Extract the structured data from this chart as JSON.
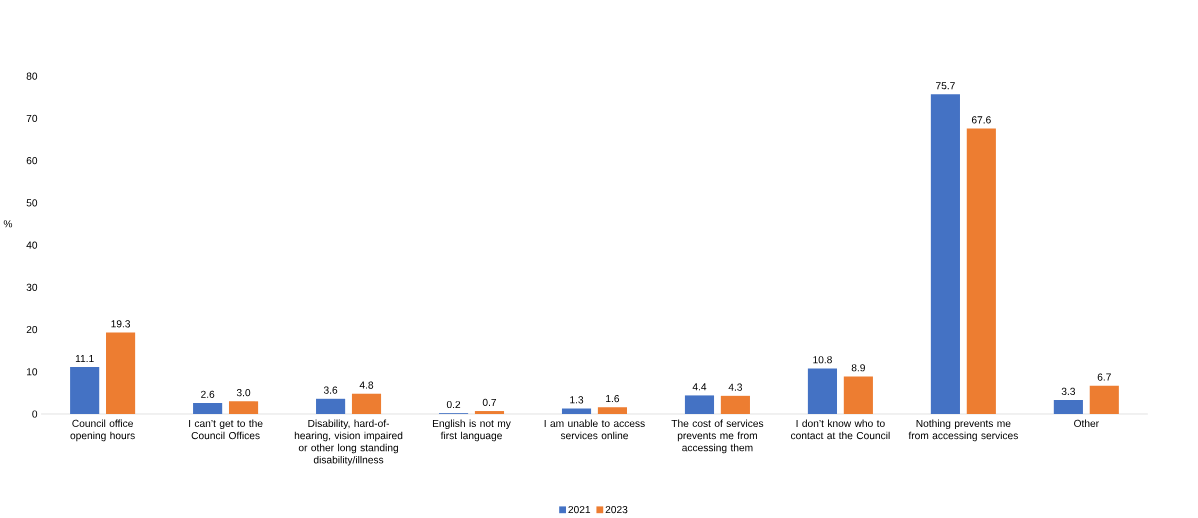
{
  "chart_data": {
    "type": "bar",
    "ylabel": "%",
    "categories": [
      "Council office opening hours",
      "I can’t get to the Council Offices",
      "Disability, hard-of-hearing, vision impaired or other long standing disability/illness",
      "English is not my first language",
      "I am unable to access services online",
      "The cost of services prevents me from accessing them",
      "I don’t know who to contact at the Council",
      "Nothing prevents me from accessing services",
      "Other"
    ],
    "series": [
      {
        "name": "2021",
        "color": "#4472c4",
        "values": [
          11.1,
          2.6,
          3.6,
          0.2,
          1.3,
          4.4,
          10.8,
          75.7,
          3.3
        ],
        "value_labels": [
          "11.1",
          "2.6",
          "3.6",
          "0.2",
          "1.3",
          "4.4",
          "10.8",
          "75.7",
          "3.3"
        ]
      },
      {
        "name": "2023",
        "color": "#ed7d31",
        "values": [
          19.3,
          3.0,
          4.8,
          0.7,
          1.6,
          4.3,
          8.9,
          67.6,
          6.7
        ],
        "value_labels": [
          "19.3",
          "3.0",
          "4.8",
          "0.7",
          "1.6",
          "4.3",
          "8.9",
          "67.6",
          "6.7"
        ]
      }
    ],
    "ylim": [
      0,
      80
    ],
    "yticks": [
      0,
      10,
      20,
      30,
      40,
      50,
      60,
      70,
      80
    ],
    "grid": false,
    "legend": "bottom"
  }
}
